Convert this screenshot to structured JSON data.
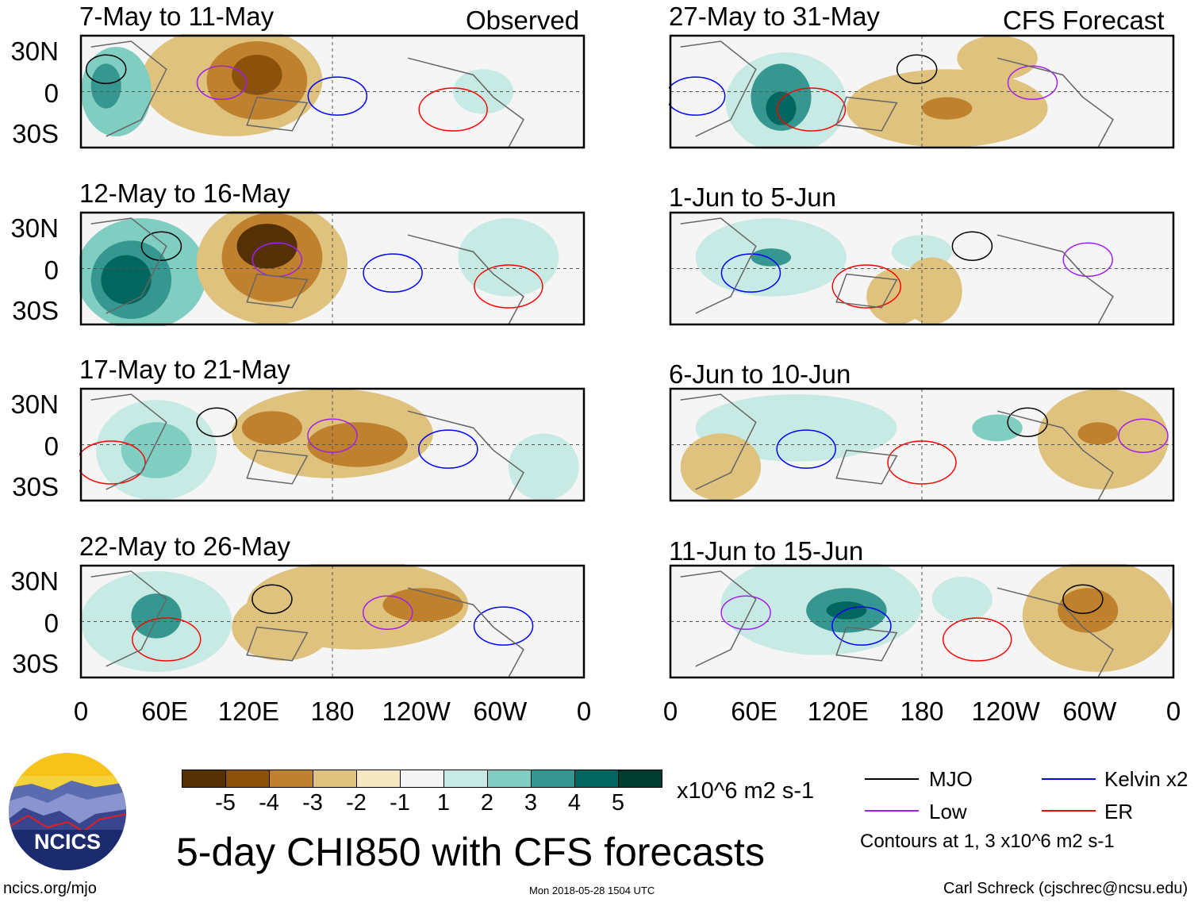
{
  "figure_title": "5-day CHI850 with CFS forecasts",
  "columns": {
    "observed_label": "Observed",
    "forecast_label": "CFS Forecast"
  },
  "observed_panels": [
    {
      "label": "7-May to 11-May"
    },
    {
      "label": "12-May to 16-May"
    },
    {
      "label": "17-May to 21-May"
    },
    {
      "label": "22-May to 26-May"
    }
  ],
  "forecast_panels": [
    {
      "label": "27-May to 31-May"
    },
    {
      "label": "1-Jun to 5-Jun"
    },
    {
      "label": "6-Jun to 10-Jun"
    },
    {
      "label": "11-Jun to 15-Jun"
    }
  ],
  "lat_ticks": [
    "30N",
    "0",
    "30S"
  ],
  "lon_ticks": [
    "0",
    "60E",
    "120E",
    "180",
    "120W",
    "60W",
    "0"
  ],
  "colorbar": {
    "labels": [
      "-5",
      "-4",
      "-3",
      "-2",
      "-1",
      "1",
      "2",
      "3",
      "4",
      "5"
    ],
    "colors": [
      "#543005",
      "#8c510a",
      "#bf812d",
      "#dfc27d",
      "#f6e8c3",
      "#f5f5f5",
      "#c7eae5",
      "#80cdc1",
      "#35978f",
      "#01665e",
      "#003c30"
    ],
    "units": "x10^6 m2 s-1"
  },
  "legend": {
    "items": [
      {
        "label": "MJO",
        "color": "#000000"
      },
      {
        "label": "Low",
        "color": "#a020f0"
      },
      {
        "label": "Kelvin x2",
        "color": "#0000ff"
      },
      {
        "label": "ER",
        "color": "#ff0000"
      }
    ],
    "contours_note": "Contours at 1, 3 x10^6 m2 s-1"
  },
  "logo_text": "NCICS",
  "footer": {
    "url": "ncics.org/mjo",
    "timestamp": "Mon 2018-05-28 1504 UTC",
    "author": "Carl Schreck (cjschrec@ncsu.edu)"
  }
}
